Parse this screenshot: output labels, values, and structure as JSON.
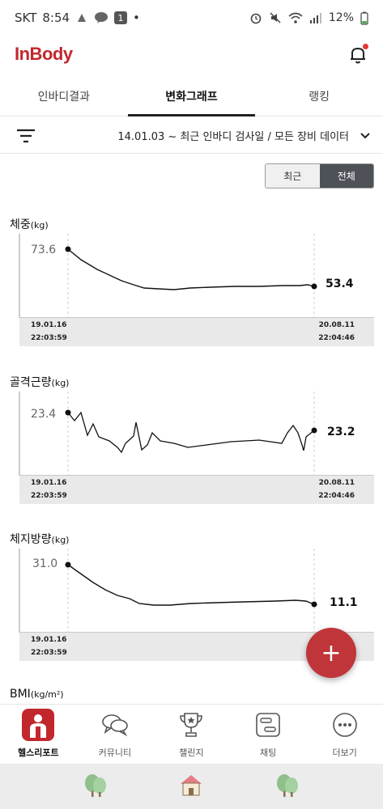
{
  "status_bar": {
    "carrier": "SKT",
    "time": "8:54",
    "notif_badge": "1",
    "dot": "•",
    "battery": "12%"
  },
  "header": {
    "logo": "InBody",
    "brand_color": "#c1272d"
  },
  "tabs": [
    {
      "label": "인바디결과",
      "active": false
    },
    {
      "label": "변화그래프",
      "active": true
    },
    {
      "label": "랭킹",
      "active": false
    }
  ],
  "filter": {
    "text": "14.01.03 ~ 최근 인바디 검사일 / 모든 장비 데이터"
  },
  "segment": {
    "recent": "최근",
    "all": "전체",
    "selected": "전체"
  },
  "charts": [
    {
      "title": "체중",
      "unit": "(kg)",
      "start_value": "73.6",
      "end_value": "53.4",
      "start_date": "19.01.16",
      "start_time": "22:03:59",
      "end_date": "20.08.11",
      "end_time": "22:04:46"
    },
    {
      "title": "골격근량",
      "unit": "(kg)",
      "start_value": "23.4",
      "end_value": "23.2",
      "start_date": "19.01.16",
      "start_time": "22:03:59",
      "end_date": "20.08.11",
      "end_time": "22:04:46"
    },
    {
      "title": "체지방량",
      "unit": "(kg)",
      "start_value": "31.0",
      "end_value": "11.1",
      "start_date": "19.01.16",
      "start_time": "22:03:59",
      "end_date": "",
      "end_time": ""
    }
  ],
  "bmi": {
    "title": "BMI",
    "unit": "(kg/m²)"
  },
  "fab": {
    "label": "+"
  },
  "bottom_nav": [
    {
      "label": "헬스리포트",
      "icon": "health-report-icon",
      "active": true
    },
    {
      "label": "커뮤니티",
      "icon": "community-icon",
      "active": false
    },
    {
      "label": "챌린지",
      "icon": "trophy-icon",
      "active": false
    },
    {
      "label": "채팅",
      "icon": "chat-icon",
      "active": false
    },
    {
      "label": "더보기",
      "icon": "more-icon",
      "active": false
    }
  ]
}
